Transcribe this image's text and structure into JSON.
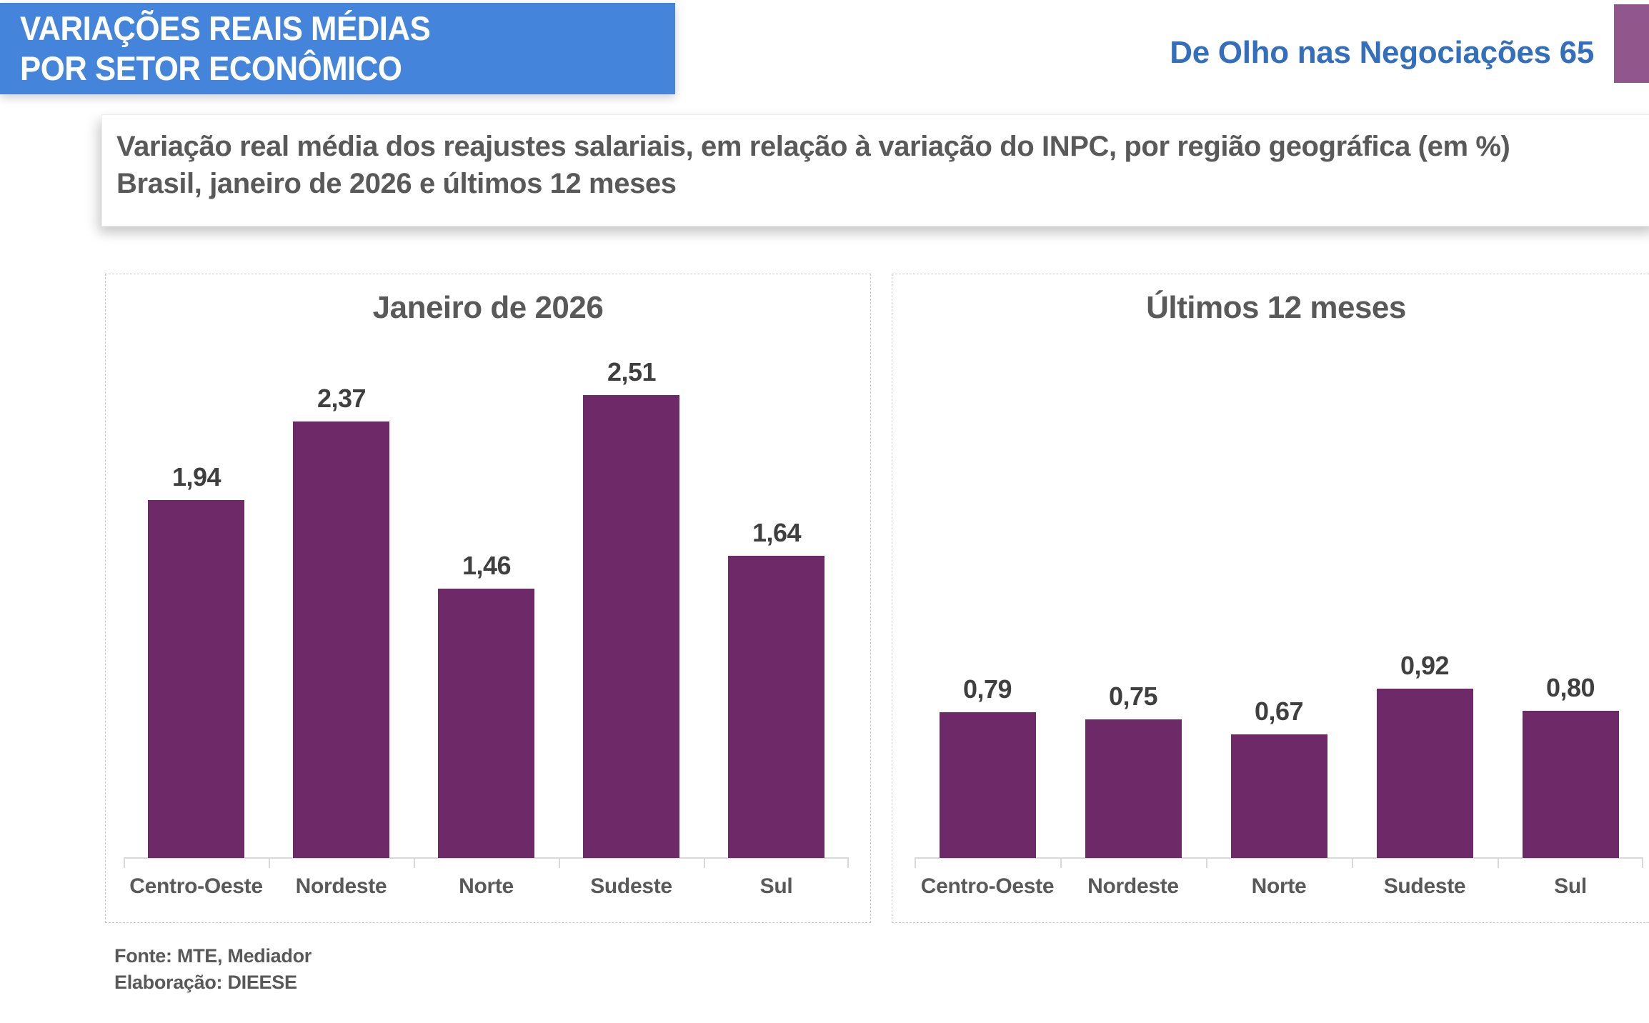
{
  "header": {
    "title_line1": "VARIAÇÕES REAIS MÉDIAS",
    "title_line2": "POR SETOR ECONÔMICO",
    "issue_label": "De Olho nas Negociações 65",
    "banner_color": "#4485DB",
    "issue_text_color": "#336FBD",
    "corner_tab_color": "#91578C"
  },
  "subtitle": {
    "line1": "Variação real média dos reajustes salariais, em relação à variação do INPC, por região geográfica (em %)",
    "line2": "Brasil, janeiro de 2026 e últimos 12 meses"
  },
  "chart_data": [
    {
      "type": "bar",
      "title": "Janeiro de 2026",
      "categories": [
        "Centro-Oeste",
        "Nordeste",
        "Norte",
        "Sudeste",
        "Sul"
      ],
      "values": [
        1.94,
        2.37,
        1.46,
        2.51,
        1.64
      ],
      "value_labels": [
        "1,94",
        "2,37",
        "1,46",
        "2,51",
        "1,64"
      ],
      "xlabel": "",
      "ylabel": "",
      "ylim": [
        0,
        3.2
      ],
      "grid": false,
      "legend": false,
      "value_labels_position": "above-bar",
      "bar_color": "#6D2968",
      "axis_color": "#d9d9d9"
    },
    {
      "type": "bar",
      "title": "Últimos 12 meses",
      "categories": [
        "Centro-Oeste",
        "Nordeste",
        "Norte",
        "Sudeste",
        "Sul"
      ],
      "values": [
        0.79,
        0.75,
        0.67,
        0.92,
        0.8
      ],
      "value_labels": [
        "0,79",
        "0,75",
        "0,67",
        "0,92",
        "0,80"
      ],
      "xlabel": "",
      "ylabel": "",
      "ylim": [
        0,
        3.2
      ],
      "grid": false,
      "legend": false,
      "value_labels_position": "above-bar",
      "bar_color": "#6D2968",
      "axis_color": "#d9d9d9"
    }
  ],
  "footer": {
    "source": "Fonte: MTE, Mediador",
    "elaboration": "Elaboração: DIEESE"
  }
}
